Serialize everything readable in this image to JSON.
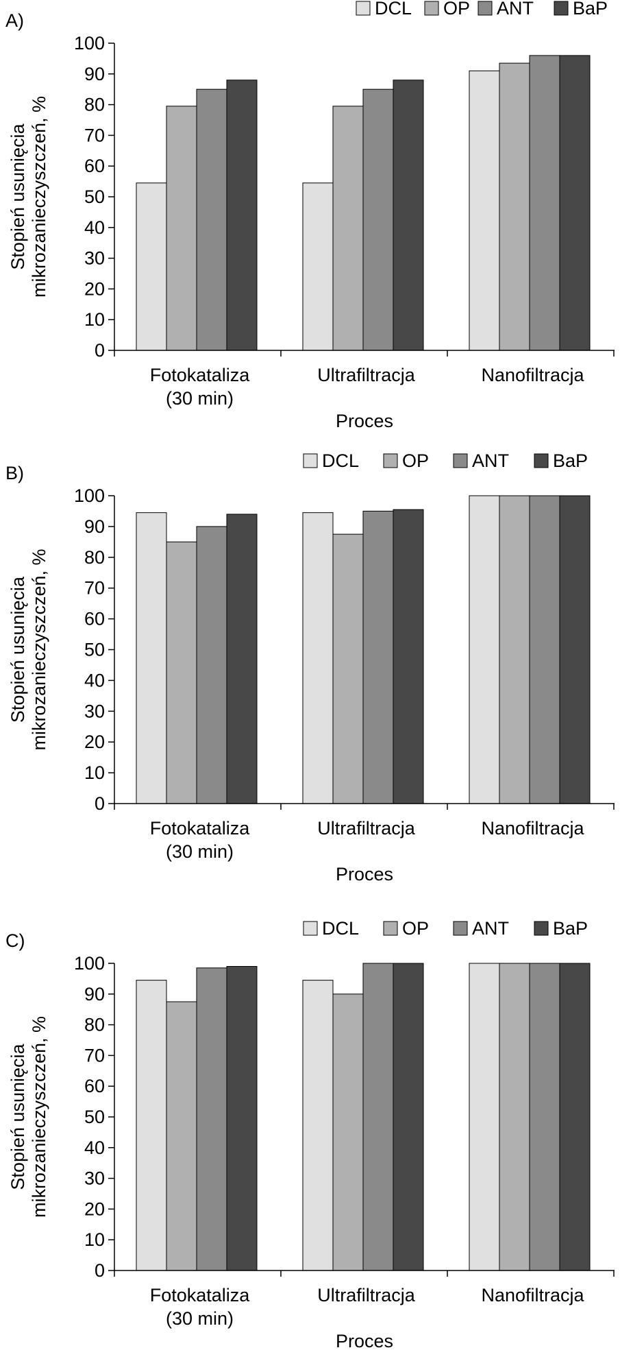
{
  "chart_data": [
    {
      "type": "bar",
      "panel_label": "A)",
      "ylabel_line1": "Stopień usunięcia",
      "ylabel_line2": "mikrozanieczyszczeń, %",
      "xlabel": "Proces",
      "ylim": [
        0,
        100
      ],
      "yticks": [
        0,
        10,
        20,
        30,
        40,
        50,
        60,
        70,
        80,
        90,
        100
      ],
      "categories": [
        {
          "lines": [
            "Fotokataliza",
            "(30 min)"
          ]
        },
        {
          "lines": [
            "Ultrafiltracja"
          ]
        },
        {
          "lines": [
            "Nanofiltracja"
          ]
        }
      ],
      "series": [
        {
          "name": "DCL",
          "color": "#e0e0e0",
          "values": [
            54.5,
            54.5,
            91
          ]
        },
        {
          "name": "OP",
          "color": "#b0b0b0",
          "values": [
            79.5,
            79.5,
            93.5
          ]
        },
        {
          "name": "ANT",
          "color": "#8a8a8a",
          "values": [
            85,
            85,
            96
          ]
        },
        {
          "name": "BaP",
          "color": "#484848",
          "values": [
            88,
            88,
            96
          ]
        }
      ],
      "legend": "top-right"
    },
    {
      "type": "bar",
      "panel_label": "B)",
      "ylabel_line1": "Stopień usunięcia",
      "ylabel_line2": "mikrozanieczyszczeń,  %",
      "xlabel": "Proces",
      "ylim": [
        0,
        100
      ],
      "yticks": [
        0,
        10,
        20,
        30,
        40,
        50,
        60,
        70,
        80,
        90,
        100
      ],
      "categories": [
        {
          "lines": [
            "Fotokataliza",
            "(30 min)"
          ]
        },
        {
          "lines": [
            "Ultrafiltracja"
          ]
        },
        {
          "lines": [
            "Nanofiltracja"
          ]
        }
      ],
      "series": [
        {
          "name": "DCL",
          "color": "#e0e0e0",
          "values": [
            94.5,
            94.5,
            100
          ]
        },
        {
          "name": "OP",
          "color": "#b0b0b0",
          "values": [
            85,
            87.5,
            100
          ]
        },
        {
          "name": "ANT",
          "color": "#8a8a8a",
          "values": [
            90,
            95,
            100
          ]
        },
        {
          "name": "BaP",
          "color": "#484848",
          "values": [
            94,
            95.5,
            100
          ]
        }
      ],
      "legend": "top-right"
    },
    {
      "type": "bar",
      "panel_label": "C)",
      "ylabel_line1": "Stopień usunięcia",
      "ylabel_line2": "mikrozanieczyszczeń,  %",
      "xlabel": "Proces",
      "ylim": [
        0,
        100
      ],
      "yticks": [
        0,
        10,
        20,
        30,
        40,
        50,
        60,
        70,
        80,
        90,
        100
      ],
      "categories": [
        {
          "lines": [
            "Fotokataliza",
            "(30 min)"
          ]
        },
        {
          "lines": [
            "Ultrafiltracja"
          ]
        },
        {
          "lines": [
            "Nanofiltracja"
          ]
        }
      ],
      "series": [
        {
          "name": "DCL",
          "color": "#e0e0e0",
          "values": [
            94.5,
            94.5,
            100
          ]
        },
        {
          "name": "OP",
          "color": "#b0b0b0",
          "values": [
            87.5,
            90,
            100
          ]
        },
        {
          "name": "ANT",
          "color": "#8a8a8a",
          "values": [
            98.5,
            100,
            100
          ]
        },
        {
          "name": "BaP",
          "color": "#484848",
          "values": [
            99,
            100,
            100
          ]
        }
      ],
      "legend": "top-right"
    }
  ]
}
